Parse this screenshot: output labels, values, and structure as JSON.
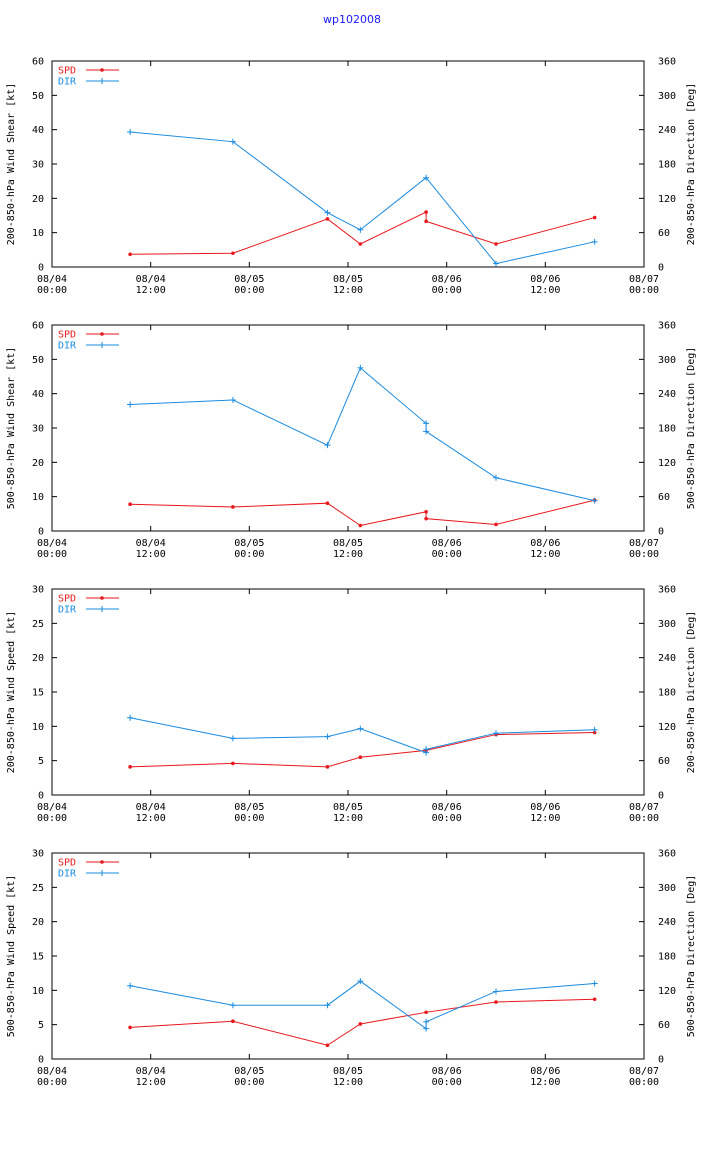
{
  "page": {
    "title": "wp102008"
  },
  "colors": {
    "spd": "#e8171b",
    "dir": "#1a8be0",
    "title": "#1a1aff"
  },
  "chart_data": [
    {
      "type": "line",
      "ylabel": "200-850-hPa Wind Shear [kt]",
      "y2label": "200-850-hPa Direction [Deg]",
      "ylim": [
        0,
        60
      ],
      "y2lim": [
        0,
        360
      ],
      "yticks": [
        0,
        10,
        20,
        30,
        40,
        50,
        60
      ],
      "y2ticks": [
        0,
        60,
        120,
        180,
        240,
        300,
        360
      ],
      "xlim": [
        0,
        72
      ],
      "xticks": [
        {
          "x": 0,
          "line1": "08/04",
          "line2": "00:00"
        },
        {
          "x": 12,
          "line1": "08/04",
          "line2": "12:00"
        },
        {
          "x": 24,
          "line1": "08/05",
          "line2": "00:00"
        },
        {
          "x": 36,
          "line1": "08/05",
          "line2": "12:00"
        },
        {
          "x": 48,
          "line1": "08/06",
          "line2": "00:00"
        },
        {
          "x": 60,
          "line1": "08/06",
          "line2": "12:00"
        },
        {
          "x": 72,
          "line1": "08/07",
          "line2": "00:00"
        }
      ],
      "series": [
        {
          "name": "SPD",
          "axis": "left",
          "x": [
            9.5,
            22,
            33.5,
            37.5,
            45.5,
            45.5,
            54,
            66
          ],
          "values": [
            3.7,
            4,
            14,
            6.7,
            16,
            13.3,
            6.7,
            14.4
          ]
        },
        {
          "name": "DIR",
          "axis": "right",
          "x": [
            9.5,
            22,
            33.5,
            37.5,
            45.5,
            54,
            66
          ],
          "values": [
            236,
            219,
            95,
            65,
            156,
            6,
            44
          ]
        }
      ]
    },
    {
      "type": "line",
      "ylabel": "500-850-hPa Wind Shear [kt]",
      "y2label": "500-850-hPa Direction [Deg]",
      "ylim": [
        0,
        60
      ],
      "y2lim": [
        0,
        360
      ],
      "yticks": [
        0,
        10,
        20,
        30,
        40,
        50,
        60
      ],
      "y2ticks": [
        0,
        60,
        120,
        180,
        240,
        300,
        360
      ],
      "xlim": [
        0,
        72
      ],
      "xticks": [
        {
          "x": 0,
          "line1": "08/04",
          "line2": "00:00"
        },
        {
          "x": 12,
          "line1": "08/04",
          "line2": "12:00"
        },
        {
          "x": 24,
          "line1": "08/05",
          "line2": "00:00"
        },
        {
          "x": 36,
          "line1": "08/05",
          "line2": "12:00"
        },
        {
          "x": 48,
          "line1": "08/06",
          "line2": "00:00"
        },
        {
          "x": 60,
          "line1": "08/06",
          "line2": "12:00"
        },
        {
          "x": 72,
          "line1": "08/07",
          "line2": "00:00"
        }
      ],
      "series": [
        {
          "name": "SPD",
          "axis": "left",
          "x": [
            9.5,
            22,
            33.5,
            37.5,
            45.5,
            45.5,
            54,
            66
          ],
          "values": [
            7.8,
            7,
            8.1,
            1.6,
            5.6,
            3.6,
            1.9,
            9
          ]
        },
        {
          "name": "DIR",
          "axis": "right",
          "x": [
            9.5,
            22,
            33.5,
            37.5,
            45.5,
            45.5,
            54,
            66
          ],
          "values": [
            221,
            229,
            150,
            285,
            188,
            174,
            93,
            53
          ]
        }
      ]
    },
    {
      "type": "line",
      "ylabel": "200-850-hPa Wind Speed [kt]",
      "y2label": "200-850-hPa Direction [Deg]",
      "ylim": [
        0,
        30
      ],
      "y2lim": [
        0,
        360
      ],
      "yticks": [
        0,
        5,
        10,
        15,
        20,
        25,
        30
      ],
      "y2ticks": [
        0,
        60,
        120,
        180,
        240,
        300,
        360
      ],
      "xlim": [
        0,
        72
      ],
      "xticks": [
        {
          "x": 0,
          "line1": "08/04",
          "line2": "00:00"
        },
        {
          "x": 12,
          "line1": "08/04",
          "line2": "12:00"
        },
        {
          "x": 24,
          "line1": "08/05",
          "line2": "00:00"
        },
        {
          "x": 36,
          "line1": "08/05",
          "line2": "12:00"
        },
        {
          "x": 48,
          "line1": "08/06",
          "line2": "00:00"
        },
        {
          "x": 60,
          "line1": "08/06",
          "line2": "12:00"
        },
        {
          "x": 72,
          "line1": "08/07",
          "line2": "00:00"
        }
      ],
      "series": [
        {
          "name": "SPD",
          "axis": "left",
          "x": [
            9.5,
            22,
            33.5,
            37.5,
            45.5,
            54,
            66
          ],
          "values": [
            4.1,
            4.6,
            4.1,
            5.5,
            6.5,
            8.8,
            9.1
          ]
        },
        {
          "name": "DIR",
          "axis": "right",
          "x": [
            9.5,
            22,
            33.5,
            37.5,
            45.5,
            45.5,
            54,
            66
          ],
          "values": [
            135,
            99,
            102,
            116,
            74,
            80,
            108,
            114
          ]
        }
      ]
    },
    {
      "type": "line",
      "ylabel": "500-850-hPa Wind Speed [kt]",
      "y2label": "500-850-hPa Direction [Deg]",
      "ylim": [
        0,
        30
      ],
      "y2lim": [
        0,
        360
      ],
      "yticks": [
        0,
        5,
        10,
        15,
        20,
        25,
        30
      ],
      "y2ticks": [
        0,
        60,
        120,
        180,
        240,
        300,
        360
      ],
      "xlim": [
        0,
        72
      ],
      "xticks": [
        {
          "x": 0,
          "line1": "08/04",
          "line2": "00:00"
        },
        {
          "x": 12,
          "line1": "08/04",
          "line2": "12:00"
        },
        {
          "x": 24,
          "line1": "08/05",
          "line2": "00:00"
        },
        {
          "x": 36,
          "line1": "08/05",
          "line2": "12:00"
        },
        {
          "x": 48,
          "line1": "08/06",
          "line2": "00:00"
        },
        {
          "x": 60,
          "line1": "08/06",
          "line2": "12:00"
        },
        {
          "x": 72,
          "line1": "08/07",
          "line2": "00:00"
        }
      ],
      "series": [
        {
          "name": "SPD",
          "axis": "left",
          "x": [
            9.5,
            22,
            33.5,
            37.5,
            45.5,
            54,
            66
          ],
          "values": [
            4.6,
            5.5,
            2,
            5.1,
            6.8,
            8.3,
            8.7
          ]
        },
        {
          "name": "DIR",
          "axis": "right",
          "x": [
            9.5,
            22,
            33.5,
            37.5,
            45.5,
            45.5,
            54,
            66
          ],
          "values": [
            128,
            94,
            94,
            136,
            53,
            65,
            118,
            132
          ]
        }
      ]
    }
  ]
}
